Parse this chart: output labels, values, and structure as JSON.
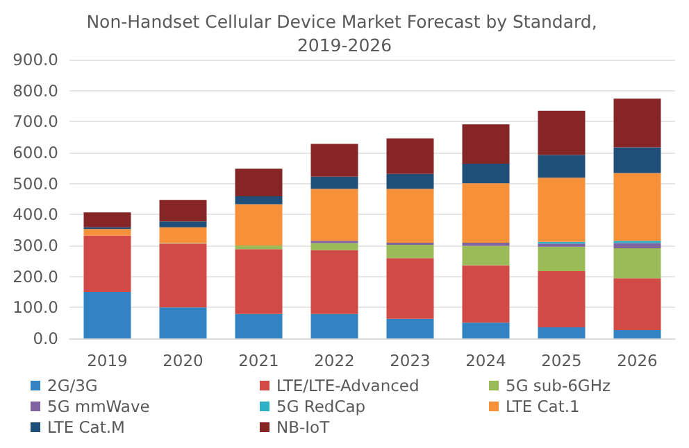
{
  "chart_data": {
    "type": "bar",
    "stacked": true,
    "title": "Non-Handset Cellular Device Market Forecast by Standard, 2019-2026",
    "categories": [
      "2019",
      "2020",
      "2021",
      "2022",
      "2023",
      "2024",
      "2025",
      "2026"
    ],
    "series": [
      {
        "name": "2G/3G",
        "color": "#3283c2",
        "values": [
          150,
          100,
          79,
          79,
          63,
          51,
          36,
          27
        ]
      },
      {
        "name": "LTE/LTE-Advanced",
        "color": "#d24a46",
        "values": [
          182,
          206,
          209,
          206,
          196,
          185,
          181,
          167
        ]
      },
      {
        "name": "5G sub-6GHz",
        "color": "#9bbb59",
        "values": [
          0,
          2,
          12,
          23,
          43,
          63,
          79,
          97
        ]
      },
      {
        "name": "5G mmWave",
        "color": "#8064a2",
        "values": [
          0,
          0,
          null,
          7,
          7,
          10,
          10,
          17
        ]
      },
      {
        "name": "5G RedCap",
        "color": "#2fb0c6",
        "values": [
          0,
          0,
          0,
          0,
          0,
          null,
          6,
          7
        ]
      },
      {
        "name": "LTE Cat.1",
        "color": "#f79139",
        "values": [
          21,
          51,
          133,
          168,
          174,
          192,
          207,
          219
        ]
      },
      {
        "name": "LTE Cat.M",
        "color": "#1f4e79",
        "values": [
          6,
          19,
          26,
          39,
          48,
          63,
          73,
          83
        ]
      },
      {
        "name": "NB-IoT",
        "color": "#862525",
        "values": [
          48,
          69,
          89,
          106,
          115,
          127,
          143,
          157
        ]
      }
    ],
    "ylim": [
      0,
      900
    ],
    "yticks": [
      {
        "value": 0,
        "label": "0.0"
      },
      {
        "value": 100,
        "label": "100.0"
      },
      {
        "value": 200,
        "label": "200.0"
      },
      {
        "value": 300,
        "label": "300.0"
      },
      {
        "value": 400,
        "label": "400.0"
      },
      {
        "value": 500,
        "label": "500.0"
      },
      {
        "value": 600,
        "label": "600.0"
      },
      {
        "value": 700,
        "label": "700.0"
      },
      {
        "value": 800,
        "label": "800.0"
      },
      {
        "value": 900,
        "label": "900.0"
      }
    ],
    "grid": "y",
    "legend": "bottom"
  }
}
